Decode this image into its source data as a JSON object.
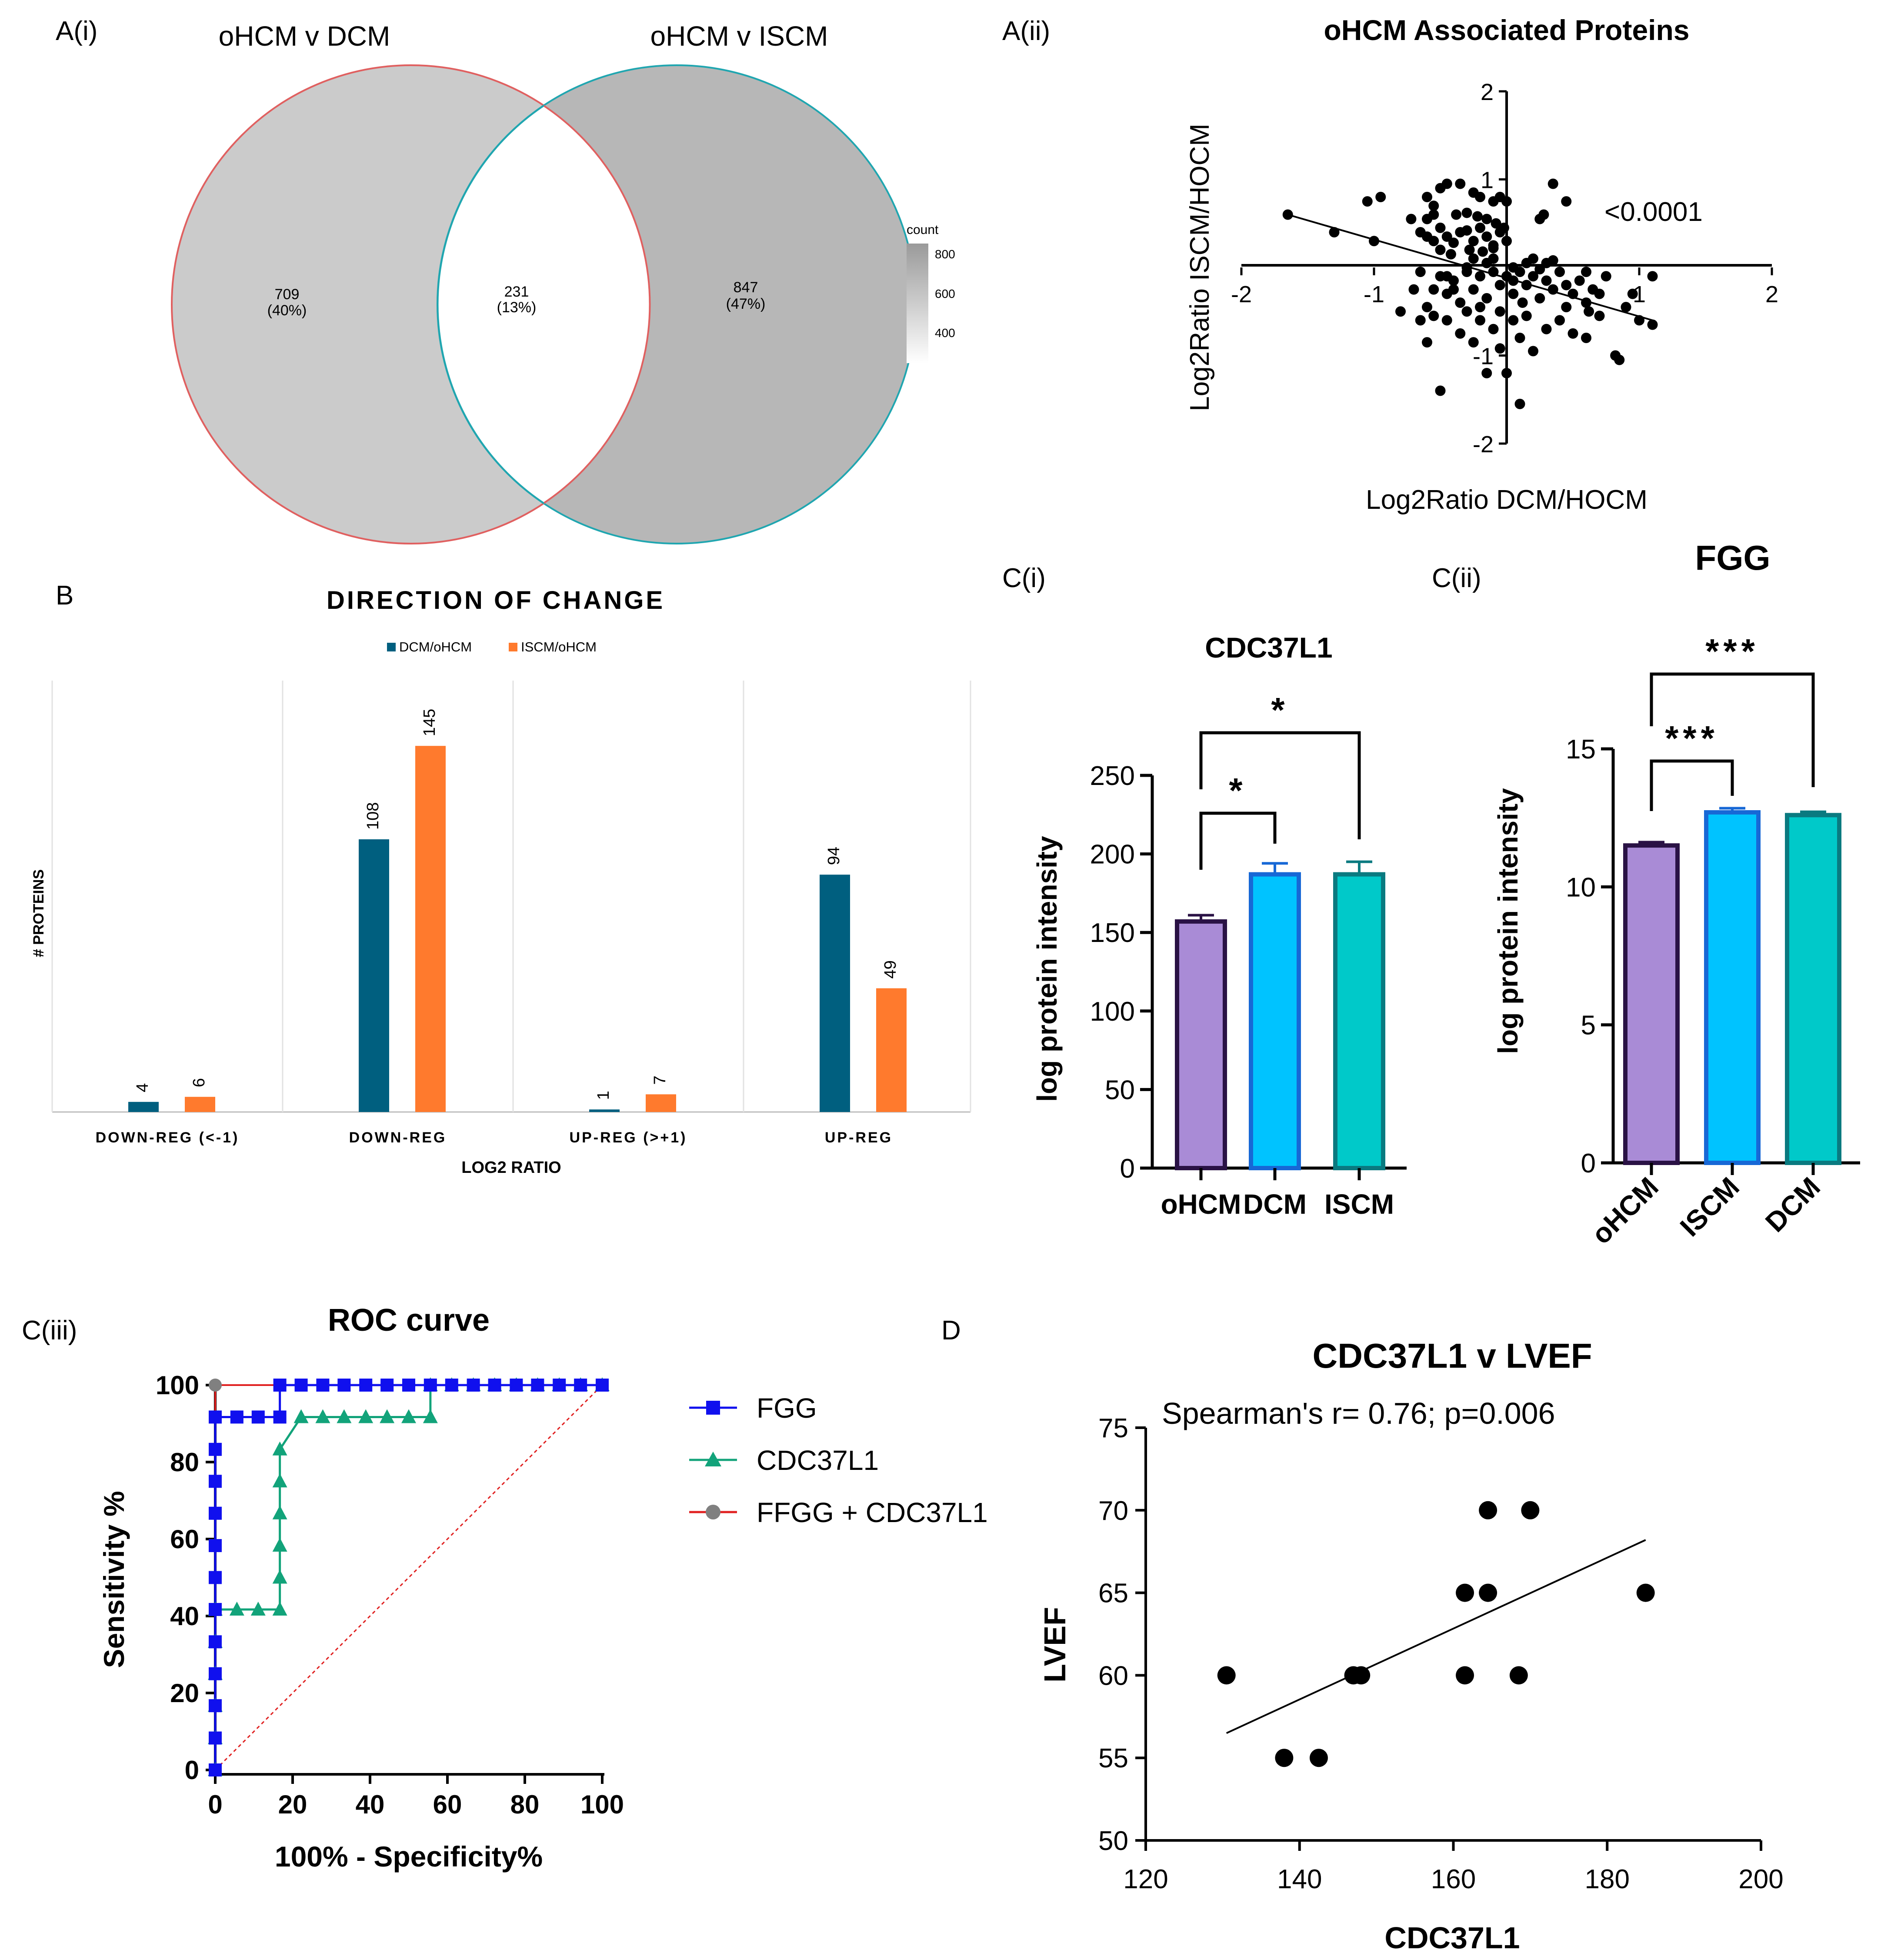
{
  "colors": {
    "teal": "#005f7f",
    "orange": "#ff7a2d",
    "purple": "#a98bd6",
    "purple_edge": "#2a1245",
    "sky": "#00c3ff",
    "sky_edge": "#1768d6",
    "cyan": "#00c9c9",
    "cyan_edge": "#0a7a80",
    "fgg_blue": "#1010ee",
    "cdc_green": "#12a37a",
    "combo_red": "#e02020",
    "combo_gray": "#808080",
    "venn_left": "#cbcbcb",
    "venn_right": "#b7b7b7",
    "venn_left_edge": "#e06060",
    "venn_right_edge": "#20a6b0"
  },
  "panels": {
    "a1": "A(i)",
    "a2": "A(ii)",
    "b": "B",
    "c1": "C(i)",
    "c2": "C(ii)",
    "c3": "C(iii)",
    "d": "D"
  },
  "chart_data": [
    {
      "id": "venn",
      "type": "venn",
      "sets": [
        "oHCM v DCM",
        "oHCM v ISCM"
      ],
      "regions": [
        {
          "count": "709",
          "pct": "(40%)"
        },
        {
          "count": "231",
          "pct": "(13%)"
        },
        {
          "count": "847",
          "pct": "(47%)"
        }
      ],
      "legend": {
        "title": "count",
        "ticks": [
          "800",
          "600",
          "400"
        ]
      }
    },
    {
      "id": "a2",
      "type": "scatter",
      "title": "oHCM Associated Proteins",
      "xlabel": "Log2Ratio DCM/HOCM",
      "ylabel": "Log2Ratio ISCM/HOCM",
      "xlim": [
        -2,
        2
      ],
      "ylim": [
        -2,
        2
      ],
      "xticks": [
        "-2",
        "-1",
        "1",
        "2"
      ],
      "yticks": [
        "2",
        "1",
        "-1",
        "-2"
      ],
      "annotation": "<0.0001",
      "fit": {
        "x": [
          -1.65,
          1.1
        ],
        "y": [
          0.6,
          -0.6
        ]
      },
      "points": [
        [
          -1.65,
          0.6
        ],
        [
          -1.3,
          0.4
        ],
        [
          -1.05,
          0.75
        ],
        [
          -1.0,
          0.3
        ],
        [
          -0.95,
          0.8
        ],
        [
          -0.72,
          0.55
        ],
        [
          -0.6,
          0.8
        ],
        [
          -0.55,
          0.7
        ],
        [
          -0.5,
          0.9
        ],
        [
          -0.45,
          0.95
        ],
        [
          -0.35,
          0.95
        ],
        [
          -0.25,
          0.85
        ],
        [
          -0.2,
          0.8
        ],
        [
          -0.1,
          0.75
        ],
        [
          -0.05,
          0.8
        ],
        [
          0.0,
          0.75
        ],
        [
          0.35,
          0.95
        ],
        [
          0.25,
          0.55
        ],
        [
          0.28,
          0.6
        ],
        [
          0.45,
          0.75
        ],
        [
          -0.65,
          0.4
        ],
        [
          -0.6,
          0.35
        ],
        [
          -0.55,
          0.3
        ],
        [
          -0.5,
          0.45
        ],
        [
          -0.45,
          0.35
        ],
        [
          -0.4,
          0.28
        ],
        [
          -0.35,
          0.4
        ],
        [
          -0.3,
          0.42
        ],
        [
          -0.25,
          0.3
        ],
        [
          -0.2,
          0.45
        ],
        [
          -0.15,
          0.35
        ],
        [
          -0.1,
          0.25
        ],
        [
          -0.05,
          0.4
        ],
        [
          0.0,
          0.3
        ],
        [
          -0.38,
          0.6
        ],
        [
          -0.3,
          0.62
        ],
        [
          -0.22,
          0.58
        ],
        [
          -0.15,
          0.55
        ],
        [
          -0.08,
          0.5
        ],
        [
          -0.6,
          0.55
        ],
        [
          -0.55,
          0.6
        ],
        [
          -0.5,
          0.2
        ],
        [
          -0.42,
          0.15
        ],
        [
          -0.28,
          0.2
        ],
        [
          -0.18,
          0.18
        ],
        [
          -0.1,
          0.22
        ],
        [
          -0.02,
          0.45
        ],
        [
          -0.7,
          -0.25
        ],
        [
          -0.65,
          -0.05
        ],
        [
          -0.6,
          -0.45
        ],
        [
          -0.55,
          -0.25
        ],
        [
          -0.5,
          -0.1
        ],
        [
          -0.45,
          -0.3
        ],
        [
          -0.4,
          -0.15
        ],
        [
          -0.35,
          -0.4
        ],
        [
          -0.3,
          -0.05
        ],
        [
          -0.25,
          -0.25
        ],
        [
          -0.2,
          -0.1
        ],
        [
          -0.15,
          -0.35
        ],
        [
          -0.1,
          -0.05
        ],
        [
          -0.05,
          -0.2
        ],
        [
          0.0,
          -0.1
        ],
        [
          0.05,
          -0.3
        ],
        [
          0.1,
          -0.05
        ],
        [
          0.15,
          -0.2
        ],
        [
          0.2,
          -0.1
        ],
        [
          0.25,
          -0.35
        ],
        [
          0.3,
          -0.15
        ],
        [
          0.35,
          -0.25
        ],
        [
          0.4,
          -0.05
        ],
        [
          0.45,
          -0.45
        ],
        [
          0.5,
          -0.3
        ],
        [
          0.55,
          -0.15
        ],
        [
          0.6,
          -0.4
        ],
        [
          0.65,
          -0.25
        ],
        [
          0.7,
          -0.55
        ],
        [
          0.75,
          -0.1
        ],
        [
          0.82,
          -1.0
        ],
        [
          0.85,
          -1.05
        ],
        [
          0.9,
          -0.45
        ],
        [
          1.1,
          -0.1
        ],
        [
          0.95,
          -0.3
        ],
        [
          1.0,
          -0.6
        ],
        [
          -0.55,
          -0.55
        ],
        [
          -0.45,
          -0.6
        ],
        [
          -0.35,
          -0.75
        ],
        [
          -0.3,
          -0.5
        ],
        [
          -0.2,
          -0.6
        ],
        [
          -0.1,
          -0.7
        ],
        [
          -0.05,
          -0.5
        ],
        [
          0.05,
          -0.6
        ],
        [
          0.1,
          -0.8
        ],
        [
          0.15,
          -0.55
        ],
        [
          0.2,
          -0.95
        ],
        [
          0.3,
          -0.7
        ],
        [
          0.4,
          -0.6
        ],
        [
          0.5,
          -0.75
        ],
        [
          -0.6,
          -0.85
        ],
        [
          -0.25,
          -0.85
        ],
        [
          -0.05,
          -0.92
        ],
        [
          0.0,
          -1.2
        ],
        [
          -0.5,
          -1.4
        ],
        [
          -0.15,
          -1.2
        ],
        [
          0.1,
          -1.55
        ],
        [
          1.1,
          -0.65
        ],
        [
          0.6,
          -0.8
        ],
        [
          -0.65,
          -0.6
        ],
        [
          -0.15,
          0.05
        ],
        [
          0.05,
          0.0
        ],
        [
          0.15,
          0.05
        ],
        [
          0.25,
          -0.02
        ],
        [
          0.3,
          0.05
        ],
        [
          -0.3,
          0.0
        ],
        [
          -0.25,
          0.1
        ],
        [
          -0.1,
          0.1
        ],
        [
          0.2,
          0.1
        ],
        [
          0.35,
          0.08
        ],
        [
          -0.45,
          -0.1
        ],
        [
          0.05,
          -0.15
        ],
        [
          0.12,
          -0.4
        ],
        [
          -0.2,
          -0.45
        ],
        [
          0.6,
          -0.05
        ],
        [
          0.62,
          -0.5
        ],
        [
          0.7,
          -0.3
        ],
        [
          -0.8,
          -0.5
        ],
        [
          -0.4,
          -0.25
        ],
        [
          0.45,
          -0.2
        ]
      ]
    },
    {
      "id": "b",
      "type": "bar",
      "title": "DIRECTION OF CHANGE",
      "xlabel": "LOG2 RATIO",
      "ylabel": "# PROTEINS",
      "categories": [
        "DOWN-REG (<-1)",
        "DOWN-REG",
        "UP-REG (>+1)",
        "UP-REG"
      ],
      "series": [
        {
          "name": "DCM/oHCM",
          "values": [
            4,
            108,
            1,
            94
          ],
          "labels": [
            "4",
            "108",
            "1",
            "94"
          ]
        },
        {
          "name": "ISCM/oHCM",
          "values": [
            6,
            145,
            7,
            49
          ],
          "labels": [
            "6",
            "145",
            "7",
            "49"
          ]
        }
      ],
      "ylim": [
        0,
        170
      ]
    },
    {
      "id": "c1",
      "type": "bar",
      "title": "CDC37L1",
      "ylabel": "log protein intensity",
      "categories": [
        "oHCM",
        "DCM",
        "ISCM"
      ],
      "values": [
        157,
        187,
        187
      ],
      "errors": [
        4,
        7,
        8
      ],
      "ylim": [
        0,
        250
      ],
      "yticks": [
        "0",
        "50",
        "100",
        "150",
        "200",
        "250"
      ],
      "significance": [
        "*",
        "*"
      ]
    },
    {
      "id": "c2",
      "type": "bar",
      "title": "FGG",
      "ylabel": "log protein intensity",
      "categories": [
        "oHCM",
        "ISCM",
        "DCM"
      ],
      "values": [
        11.5,
        12.7,
        12.6
      ],
      "errors": [
        0.12,
        0.15,
        0.12
      ],
      "ylim": [
        0,
        15
      ],
      "yticks": [
        "0",
        "5",
        "10",
        "15"
      ],
      "significance": [
        "***",
        "***"
      ]
    },
    {
      "id": "c3",
      "type": "line",
      "title": "ROC curve",
      "xlabel": "100% - Specificity%",
      "ylabel": "Sensitivity %",
      "xlim": [
        0,
        100
      ],
      "ylim": [
        0,
        100
      ],
      "xticks": [
        "0",
        "20",
        "40",
        "60",
        "80",
        "100"
      ],
      "yticks": [
        "0",
        "20",
        "40",
        "60",
        "80",
        "100"
      ],
      "series": [
        {
          "name": "FGG",
          "x": [
            0,
            0,
            0,
            0,
            0,
            0,
            0,
            0,
            0,
            0,
            0,
            0,
            5.6,
            11.1,
            16.7,
            16.7,
            22.2,
            27.8,
            33.3,
            38.9,
            44.4,
            50,
            55.6,
            61.1,
            66.7,
            72.2,
            77.8,
            83.3,
            88.9,
            94.4,
            100
          ],
          "y": [
            0,
            8.3,
            16.7,
            25,
            33.3,
            41.7,
            50,
            58.3,
            66.7,
            75,
            83.3,
            91.7,
            91.7,
            91.7,
            91.7,
            100,
            100,
            100,
            100,
            100,
            100,
            100,
            100,
            100,
            100,
            100,
            100,
            100,
            100,
            100,
            100
          ]
        },
        {
          "name": "CDC37L1",
          "x": [
            0,
            0,
            0,
            0,
            0,
            0,
            5.6,
            11.1,
            16.7,
            16.7,
            16.7,
            16.7,
            16.7,
            16.7,
            22.2,
            27.8,
            33.3,
            38.9,
            44.4,
            50,
            55.6,
            55.6,
            61.1,
            66.7,
            72.2,
            77.8,
            83.3,
            88.9,
            94.4,
            100
          ],
          "y": [
            0,
            8.3,
            16.7,
            25,
            33.3,
            41.7,
            41.7,
            41.7,
            41.7,
            50,
            58.3,
            66.7,
            75,
            83.3,
            91.7,
            91.7,
            91.7,
            91.7,
            91.7,
            91.7,
            91.7,
            100,
            100,
            100,
            100,
            100,
            100,
            100,
            100,
            100
          ]
        },
        {
          "name": "FFGG + CDC37L1",
          "x": [
            0,
            0,
            100
          ],
          "y": [
            0,
            100,
            100
          ]
        }
      ]
    },
    {
      "id": "d",
      "type": "scatter",
      "title": "CDC37L1 v LVEF",
      "annotation": "Spearman's r= 0.76; p=0.006",
      "xlabel": "CDC37L1",
      "ylabel": "LVEF",
      "xlim": [
        120,
        200
      ],
      "ylim": [
        50,
        75
      ],
      "xticks": [
        "120",
        "140",
        "160",
        "180",
        "200"
      ],
      "yticks": [
        "50",
        "55",
        "60",
        "65",
        "70",
        "75"
      ],
      "points": [
        [
          130.5,
          60
        ],
        [
          138,
          55
        ],
        [
          142.5,
          55
        ],
        [
          147,
          60
        ],
        [
          148,
          60
        ],
        [
          161.5,
          65
        ],
        [
          161.5,
          60
        ],
        [
          164.5,
          70
        ],
        [
          164.5,
          65
        ],
        [
          168.5,
          60
        ],
        [
          170,
          70
        ],
        [
          185,
          65
        ]
      ],
      "fit": {
        "x": [
          130.5,
          185
        ],
        "y": [
          56.5,
          68.2
        ]
      }
    }
  ]
}
